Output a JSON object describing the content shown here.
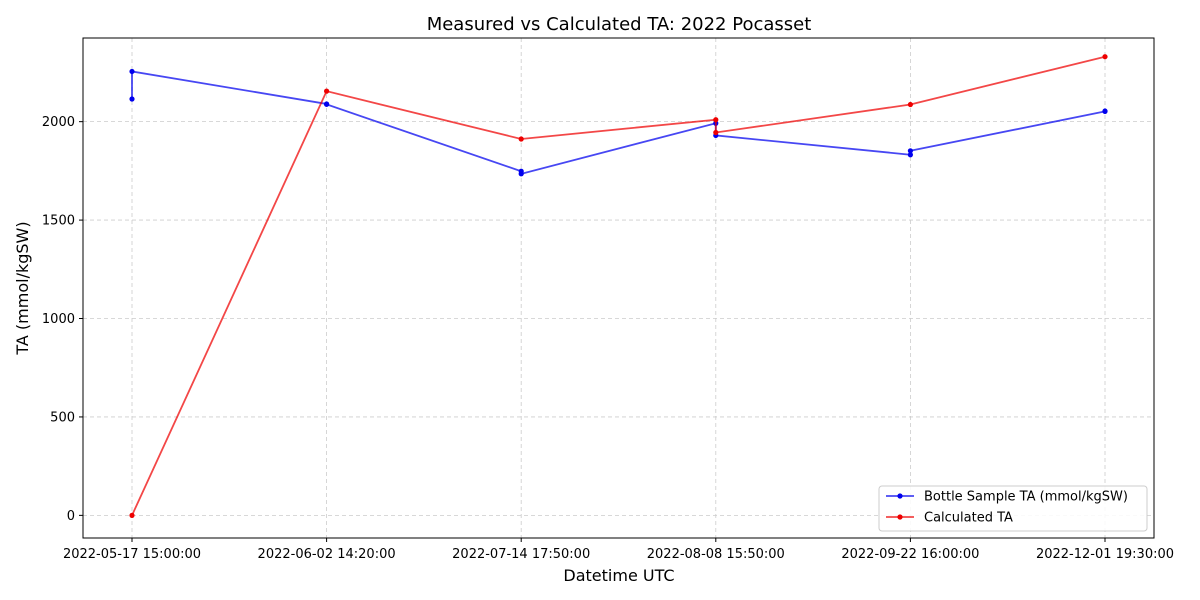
{
  "chart_data": {
    "type": "line",
    "title": "Measured vs Calculated TA: 2022 Pocasset",
    "xlabel": "Datetime UTC",
    "ylabel": "TA (mmol/kgSW)",
    "categories": [
      "2022-05-17 15:00:00",
      "2022-06-02 14:20:00",
      "2022-07-14 17:50:00",
      "2022-08-08 15:50:00",
      "2022-09-22 16:00:00",
      "2022-12-01 19:30:00"
    ],
    "yticks": [
      0,
      500,
      1000,
      1500,
      2000
    ],
    "ylim": [
      -115,
      2425
    ],
    "grid": true,
    "legend_position": "bottom-right",
    "series": [
      {
        "name": "Bottle Sample TA (mmol/kgSW)",
        "color": "#0000ee",
        "points": [
          {
            "x": 0,
            "y": 2115
          },
          {
            "x": 0,
            "y": 2255
          },
          {
            "x": 1,
            "y": 2090
          },
          {
            "x": 1,
            "y": 2088
          },
          {
            "x": 2,
            "y": 1748
          },
          {
            "x": 2,
            "y": 1735
          },
          {
            "x": 3,
            "y": 1992
          },
          {
            "x": 3,
            "y": 1930
          },
          {
            "x": 4,
            "y": 1832
          },
          {
            "x": 4,
            "y": 1852
          },
          {
            "x": 5,
            "y": 2052
          },
          {
            "x": 5,
            "y": 2054
          }
        ]
      },
      {
        "name": "Calculated TA",
        "color": "#ee0000",
        "points": [
          {
            "x": 0,
            "y": 0
          },
          {
            "x": 1,
            "y": 2155
          },
          {
            "x": 2,
            "y": 1912
          },
          {
            "x": 3,
            "y": 2010
          },
          {
            "x": 3,
            "y": 1945
          },
          {
            "x": 4,
            "y": 2087
          },
          {
            "x": 5,
            "y": 2330
          }
        ]
      }
    ]
  }
}
